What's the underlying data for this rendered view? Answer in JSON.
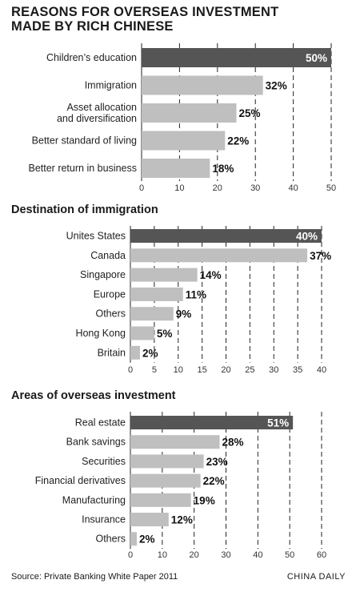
{
  "title": "REASONS FOR OVERSEAS INVESTMENT\nMADE BY RICH CHINESE",
  "source": "Source: Private Banking White Paper 2011",
  "credit": "CHINA DAILY",
  "colors": {
    "highlight": "#555555",
    "bar": "#bfbfbf",
    "axis": "#222222"
  },
  "chart_data": [
    {
      "type": "bar",
      "orientation": "horizontal",
      "title": "",
      "categories": [
        "Children’s education",
        "Immigration",
        "Asset allocation\nand diversification",
        "Better standard of living",
        "Better return in business"
      ],
      "values": [
        50,
        32,
        25,
        22,
        18
      ],
      "value_labels": [
        "50%",
        "32%",
        "25%",
        "22%",
        "18%"
      ],
      "xlim": [
        0,
        50
      ],
      "xticks": [
        0,
        10,
        20,
        30,
        40,
        50
      ],
      "highlight_index": 0,
      "grid": true
    },
    {
      "type": "bar",
      "orientation": "horizontal",
      "title": "Destination of immigration",
      "categories": [
        "Unites States",
        "Canada",
        "Singapore",
        "Europe",
        "Others",
        "Hong Kong",
        "Britain"
      ],
      "values": [
        40,
        37,
        14,
        11,
        9,
        5,
        2
      ],
      "value_labels": [
        "40%",
        "37%",
        "14%",
        "11%",
        "9%",
        "5%",
        "2%"
      ],
      "xlim": [
        0,
        40
      ],
      "xticks": [
        0,
        5,
        10,
        15,
        20,
        25,
        30,
        35,
        40
      ],
      "highlight_index": 0,
      "grid": true
    },
    {
      "type": "bar",
      "orientation": "horizontal",
      "title": "Areas of overseas investment",
      "categories": [
        "Real estate",
        "Bank savings",
        "Securities",
        "Financial derivatives",
        "Manufacturing",
        "Insurance",
        "Others"
      ],
      "values": [
        51,
        28,
        23,
        22,
        19,
        12,
        2
      ],
      "value_labels": [
        "51%",
        "28%",
        "23%",
        "22%",
        "19%",
        "12%",
        "2%"
      ],
      "xlim": [
        0,
        60
      ],
      "xticks": [
        0,
        10,
        20,
        30,
        40,
        50,
        60
      ],
      "highlight_index": 0,
      "grid": true
    }
  ]
}
